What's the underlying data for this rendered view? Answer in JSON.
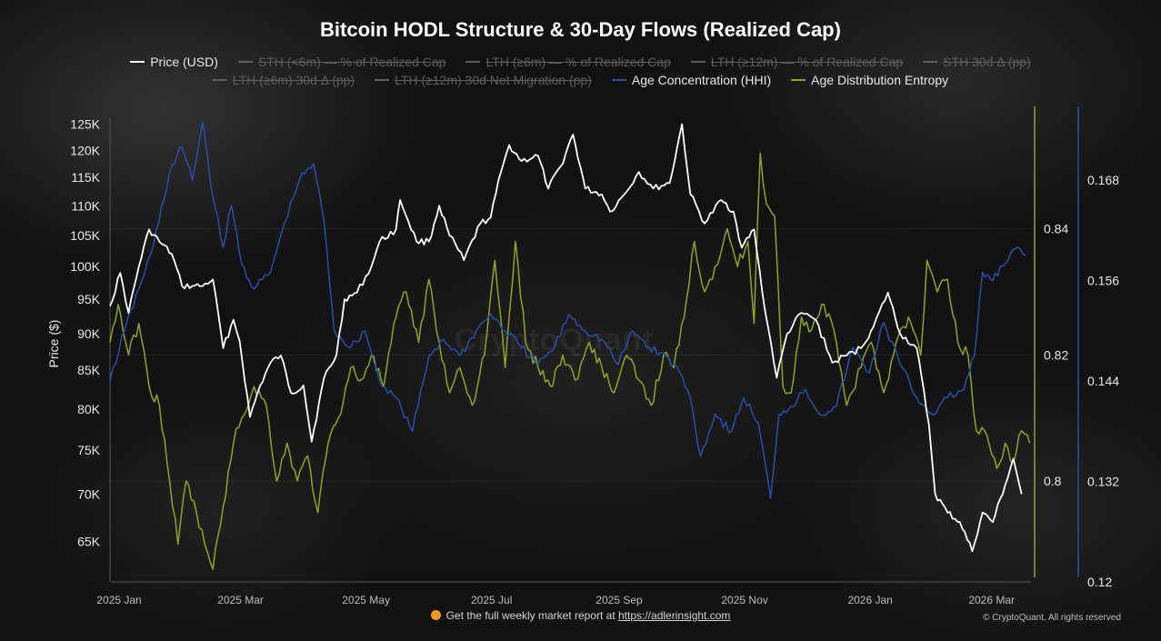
{
  "chart_data": {
    "type": "line",
    "title": "Bitcoin HODL Structure & 30-Day Flows (Realized Cap)",
    "ylabel": "Price ($)",
    "x_ticks": [
      "2025 Jan",
      "2025 Mar",
      "2025 May",
      "2025 Jul",
      "2025 Sep",
      "2025 Nov",
      "2026 Jan",
      "2026 Mar"
    ],
    "x_start": "2025-01-01",
    "x_end": "2026-03-25",
    "y_left": {
      "scale": "log",
      "range": [
        61000,
        128000
      ],
      "ticks": [
        "65K",
        "70K",
        "75K",
        "80K",
        "85K",
        "90K",
        "95K",
        "100K",
        "105K",
        "110K",
        "115K",
        "120K",
        "125K"
      ],
      "tick_values": [
        65000,
        70000,
        75000,
        80000,
        85000,
        90000,
        95000,
        100000,
        105000,
        110000,
        115000,
        120000,
        125000
      ]
    },
    "y_right1": {
      "series": "Age Distribution Entropy",
      "range": [
        0.784,
        0.859
      ],
      "ticks": [
        "0.8",
        "0.82",
        "0.84"
      ],
      "tick_values": [
        0.8,
        0.82,
        0.84
      ]
    },
    "y_right2": {
      "series": "Age Concentration (HHI)",
      "range": [
        0.12,
        0.1765
      ],
      "ticks": [
        "0.12",
        "0.132",
        "0.144",
        "0.156",
        "0.168"
      ],
      "tick_values": [
        0.12,
        0.132,
        0.144,
        0.156,
        0.168
      ]
    },
    "grid": true,
    "legend_position": "top",
    "legend": [
      {
        "name": "Price (USD)",
        "visible": true,
        "color": "#ffffff"
      },
      {
        "name": "STH (<6m) — % of Realized Cap",
        "visible": false,
        "color": "#5e5e5e"
      },
      {
        "name": "LTH (≥6m) — % of Realized Cap",
        "visible": false,
        "color": "#5e5e5e"
      },
      {
        "name": "LTH (≥12m) — % of Realized Cap",
        "visible": false,
        "color": "#5e5e5e"
      },
      {
        "name": "STH 30d Δ (pp)",
        "visible": false,
        "color": "#5e5e5e"
      },
      {
        "name": "LTH (≥6m) 30d Δ (pp)",
        "visible": false,
        "color": "#5e5e5e"
      },
      {
        "name": "LTH (≥12m) 30d Net Migration (pp)",
        "visible": false,
        "color": "#5e5e5e"
      },
      {
        "name": "Age Concentration (HHI)",
        "visible": true,
        "color": "#2b4ea8"
      },
      {
        "name": "Age Distribution Entropy",
        "visible": true,
        "color": "#8aa81e"
      }
    ],
    "series": [
      {
        "name": "Price (USD)",
        "color": "#ffffff",
        "axis": "left",
        "points": [
          [
            "2025-01-01",
            94000
          ],
          [
            "2025-01-06",
            99000
          ],
          [
            "2025-01-10",
            93000
          ],
          [
            "2025-01-15",
            100000
          ],
          [
            "2025-01-20",
            106000
          ],
          [
            "2025-01-25",
            104000
          ],
          [
            "2025-01-31",
            102000
          ],
          [
            "2025-02-05",
            97000
          ],
          [
            "2025-02-10",
            97000
          ],
          [
            "2025-02-15",
            97000
          ],
          [
            "2025-02-20",
            98000
          ],
          [
            "2025-02-25",
            88000
          ],
          [
            "2025-03-02",
            92000
          ],
          [
            "2025-03-05",
            89000
          ],
          [
            "2025-03-10",
            79000
          ],
          [
            "2025-03-15",
            83000
          ],
          [
            "2025-03-20",
            86000
          ],
          [
            "2025-03-25",
            87000
          ],
          [
            "2025-03-30",
            82000
          ],
          [
            "2025-04-05",
            83000
          ],
          [
            "2025-04-09",
            76000
          ],
          [
            "2025-04-15",
            84000
          ],
          [
            "2025-04-21",
            87000
          ],
          [
            "2025-04-25",
            95000
          ],
          [
            "2025-05-01",
            96000
          ],
          [
            "2025-05-08",
            100000
          ],
          [
            "2025-05-12",
            104000
          ],
          [
            "2025-05-20",
            106000
          ],
          [
            "2025-05-22",
            111000
          ],
          [
            "2025-05-30",
            104000
          ],
          [
            "2025-06-05",
            104000
          ],
          [
            "2025-06-10",
            110000
          ],
          [
            "2025-06-15",
            105000
          ],
          [
            "2025-06-22",
            101000
          ],
          [
            "2025-06-30",
            107000
          ],
          [
            "2025-07-05",
            108000
          ],
          [
            "2025-07-10",
            116000
          ],
          [
            "2025-07-14",
            121000
          ],
          [
            "2025-07-20",
            118000
          ],
          [
            "2025-07-28",
            119000
          ],
          [
            "2025-08-02",
            113000
          ],
          [
            "2025-08-08",
            117000
          ],
          [
            "2025-08-14",
            123000
          ],
          [
            "2025-08-20",
            113000
          ],
          [
            "2025-08-28",
            112000
          ],
          [
            "2025-09-01",
            109000
          ],
          [
            "2025-09-08",
            112000
          ],
          [
            "2025-09-15",
            116000
          ],
          [
            "2025-09-22",
            113000
          ],
          [
            "2025-09-30",
            114000
          ],
          [
            "2025-10-06",
            125000
          ],
          [
            "2025-10-10",
            112000
          ],
          [
            "2025-10-17",
            107000
          ],
          [
            "2025-10-25",
            111000
          ],
          [
            "2025-10-31",
            109000
          ],
          [
            "2025-11-04",
            103000
          ],
          [
            "2025-11-10",
            106000
          ],
          [
            "2025-11-14",
            96000
          ],
          [
            "2025-11-21",
            84000
          ],
          [
            "2025-11-26",
            90000
          ],
          [
            "2025-12-03",
            93000
          ],
          [
            "2025-12-10",
            92000
          ],
          [
            "2025-12-18",
            86000
          ],
          [
            "2025-12-25",
            87000
          ],
          [
            "2026-01-01",
            88000
          ],
          [
            "2026-01-07",
            91000
          ],
          [
            "2026-01-14",
            96000
          ],
          [
            "2026-01-20",
            90000
          ],
          [
            "2026-01-28",
            88000
          ],
          [
            "2026-02-03",
            78000
          ],
          [
            "2026-02-06",
            70000
          ],
          [
            "2026-02-12",
            68000
          ],
          [
            "2026-02-18",
            67000
          ],
          [
            "2026-02-24",
            64000
          ],
          [
            "2026-03-01",
            68000
          ],
          [
            "2026-03-06",
            67000
          ],
          [
            "2026-03-12",
            71000
          ],
          [
            "2026-03-16",
            74000
          ],
          [
            "2026-03-20",
            70000
          ]
        ]
      },
      {
        "name": "Age Concentration (HHI)",
        "color": "#2b4ea8",
        "axis": "right2",
        "points": [
          [
            "2025-01-01",
            0.144
          ],
          [
            "2025-01-08",
            0.15
          ],
          [
            "2025-01-15",
            0.155
          ],
          [
            "2025-01-22",
            0.16
          ],
          [
            "2025-01-30",
            0.169
          ],
          [
            "2025-02-05",
            0.172
          ],
          [
            "2025-02-10",
            0.168
          ],
          [
            "2025-02-15",
            0.175
          ],
          [
            "2025-02-20",
            0.166
          ],
          [
            "2025-02-25",
            0.16
          ],
          [
            "2025-03-01",
            0.165
          ],
          [
            "2025-03-06",
            0.158
          ],
          [
            "2025-03-12",
            0.155
          ],
          [
            "2025-03-20",
            0.157
          ],
          [
            "2025-03-27",
            0.163
          ],
          [
            "2025-04-03",
            0.168
          ],
          [
            "2025-04-10",
            0.17
          ],
          [
            "2025-04-15",
            0.163
          ],
          [
            "2025-04-20",
            0.15
          ],
          [
            "2025-04-28",
            0.148
          ],
          [
            "2025-05-05",
            0.15
          ],
          [
            "2025-05-12",
            0.144
          ],
          [
            "2025-05-20",
            0.142
          ],
          [
            "2025-05-28",
            0.138
          ],
          [
            "2025-06-05",
            0.147
          ],
          [
            "2025-06-12",
            0.149
          ],
          [
            "2025-06-20",
            0.147
          ],
          [
            "2025-06-28",
            0.15
          ],
          [
            "2025-07-05",
            0.152
          ],
          [
            "2025-07-12",
            0.15
          ],
          [
            "2025-07-20",
            0.148
          ],
          [
            "2025-07-28",
            0.146
          ],
          [
            "2025-08-05",
            0.148
          ],
          [
            "2025-08-12",
            0.152
          ],
          [
            "2025-08-20",
            0.15
          ],
          [
            "2025-08-28",
            0.149
          ],
          [
            "2025-09-05",
            0.146
          ],
          [
            "2025-09-12",
            0.15
          ],
          [
            "2025-09-20",
            0.148
          ],
          [
            "2025-09-28",
            0.147
          ],
          [
            "2025-10-05",
            0.145
          ],
          [
            "2025-10-10",
            0.142
          ],
          [
            "2025-10-15",
            0.135
          ],
          [
            "2025-10-22",
            0.14
          ],
          [
            "2025-10-30",
            0.138
          ],
          [
            "2025-11-05",
            0.142
          ],
          [
            "2025-11-12",
            0.139
          ],
          [
            "2025-11-18",
            0.13
          ],
          [
            "2025-11-22",
            0.14
          ],
          [
            "2025-11-28",
            0.141
          ],
          [
            "2025-12-05",
            0.143
          ],
          [
            "2025-12-12",
            0.14
          ],
          [
            "2025-12-20",
            0.141
          ],
          [
            "2025-12-28",
            0.148
          ],
          [
            "2026-01-05",
            0.145
          ],
          [
            "2026-01-12",
            0.151
          ],
          [
            "2026-01-20",
            0.146
          ],
          [
            "2026-01-28",
            0.142
          ],
          [
            "2026-02-05",
            0.14
          ],
          [
            "2026-02-12",
            0.142
          ],
          [
            "2026-02-20",
            0.143
          ],
          [
            "2026-02-25",
            0.147
          ],
          [
            "2026-03-01",
            0.157
          ],
          [
            "2026-03-06",
            0.156
          ],
          [
            "2026-03-12",
            0.158
          ],
          [
            "2026-03-18",
            0.16
          ],
          [
            "2026-03-22",
            0.159
          ]
        ]
      },
      {
        "name": "Age Distribution Entropy",
        "color": "#8aa81e",
        "axis": "right1",
        "points": [
          [
            "2025-01-01",
            0.822
          ],
          [
            "2025-01-05",
            0.828
          ],
          [
            "2025-01-10",
            0.82
          ],
          [
            "2025-01-15",
            0.825
          ],
          [
            "2025-01-20",
            0.815
          ],
          [
            "2025-01-25",
            0.812
          ],
          [
            "2025-01-30",
            0.8
          ],
          [
            "2025-02-03",
            0.79
          ],
          [
            "2025-02-07",
            0.8
          ],
          [
            "2025-02-12",
            0.795
          ],
          [
            "2025-02-16",
            0.79
          ],
          [
            "2025-02-20",
            0.786
          ],
          [
            "2025-02-25",
            0.796
          ],
          [
            "2025-03-02",
            0.806
          ],
          [
            "2025-03-06",
            0.81
          ],
          [
            "2025-03-12",
            0.815
          ],
          [
            "2025-03-18",
            0.812
          ],
          [
            "2025-03-23",
            0.8
          ],
          [
            "2025-03-28",
            0.806
          ],
          [
            "2025-04-02",
            0.8
          ],
          [
            "2025-04-07",
            0.804
          ],
          [
            "2025-04-12",
            0.795
          ],
          [
            "2025-04-17",
            0.806
          ],
          [
            "2025-04-22",
            0.81
          ],
          [
            "2025-04-28",
            0.818
          ],
          [
            "2025-05-03",
            0.816
          ],
          [
            "2025-05-08",
            0.82
          ],
          [
            "2025-05-14",
            0.815
          ],
          [
            "2025-05-20",
            0.826
          ],
          [
            "2025-05-25",
            0.83
          ],
          [
            "2025-05-31",
            0.822
          ],
          [
            "2025-06-05",
            0.832
          ],
          [
            "2025-06-10",
            0.822
          ],
          [
            "2025-06-15",
            0.814
          ],
          [
            "2025-06-20",
            0.818
          ],
          [
            "2025-06-26",
            0.812
          ],
          [
            "2025-07-02",
            0.82
          ],
          [
            "2025-07-07",
            0.835
          ],
          [
            "2025-07-12",
            0.818
          ],
          [
            "2025-07-17",
            0.838
          ],
          [
            "2025-07-22",
            0.822
          ],
          [
            "2025-07-28",
            0.818
          ],
          [
            "2025-08-03",
            0.815
          ],
          [
            "2025-08-09",
            0.82
          ],
          [
            "2025-08-15",
            0.816
          ],
          [
            "2025-08-22",
            0.822
          ],
          [
            "2025-08-28",
            0.818
          ],
          [
            "2025-09-03",
            0.814
          ],
          [
            "2025-09-09",
            0.82
          ],
          [
            "2025-09-15",
            0.816
          ],
          [
            "2025-09-21",
            0.812
          ],
          [
            "2025-09-27",
            0.82
          ],
          [
            "2025-10-02",
            0.818
          ],
          [
            "2025-10-07",
            0.826
          ],
          [
            "2025-10-12",
            0.838
          ],
          [
            "2025-10-17",
            0.83
          ],
          [
            "2025-10-22",
            0.834
          ],
          [
            "2025-10-28",
            0.84
          ],
          [
            "2025-11-02",
            0.834
          ],
          [
            "2025-11-07",
            0.838
          ],
          [
            "2025-11-10",
            0.825
          ],
          [
            "2025-11-13",
            0.852
          ],
          [
            "2025-11-16",
            0.844
          ],
          [
            "2025-11-20",
            0.842
          ],
          [
            "2025-11-24",
            0.815
          ],
          [
            "2025-11-28",
            0.814
          ],
          [
            "2025-12-03",
            0.826
          ],
          [
            "2025-12-08",
            0.824
          ],
          [
            "2025-12-14",
            0.828
          ],
          [
            "2025-12-20",
            0.822
          ],
          [
            "2025-12-25",
            0.812
          ],
          [
            "2026-01-01",
            0.818
          ],
          [
            "2026-01-06",
            0.822
          ],
          [
            "2026-01-12",
            0.814
          ],
          [
            "2026-01-18",
            0.822
          ],
          [
            "2026-01-24",
            0.826
          ],
          [
            "2026-01-30",
            0.82
          ],
          [
            "2026-02-02",
            0.835
          ],
          [
            "2026-02-07",
            0.83
          ],
          [
            "2026-02-12",
            0.832
          ],
          [
            "2026-02-17",
            0.822
          ],
          [
            "2026-02-22",
            0.82
          ],
          [
            "2026-02-26",
            0.808
          ],
          [
            "2026-03-02",
            0.808
          ],
          [
            "2026-03-08",
            0.802
          ],
          [
            "2026-03-12",
            0.806
          ],
          [
            "2026-03-16",
            0.803
          ],
          [
            "2026-03-20",
            0.808
          ],
          [
            "2026-03-24",
            0.806
          ]
        ]
      }
    ]
  },
  "watermark": "CryptoQuant",
  "footer": {
    "text": "Get the full weekly market report at",
    "link": "https://adlerinsight.com",
    "copyright": "© CryptoQuant. All rights reserved"
  },
  "colors": {
    "background": "#121213",
    "price": "#ffffff",
    "hhi": "#2b4ea8",
    "entropy": "#8aa81e"
  }
}
